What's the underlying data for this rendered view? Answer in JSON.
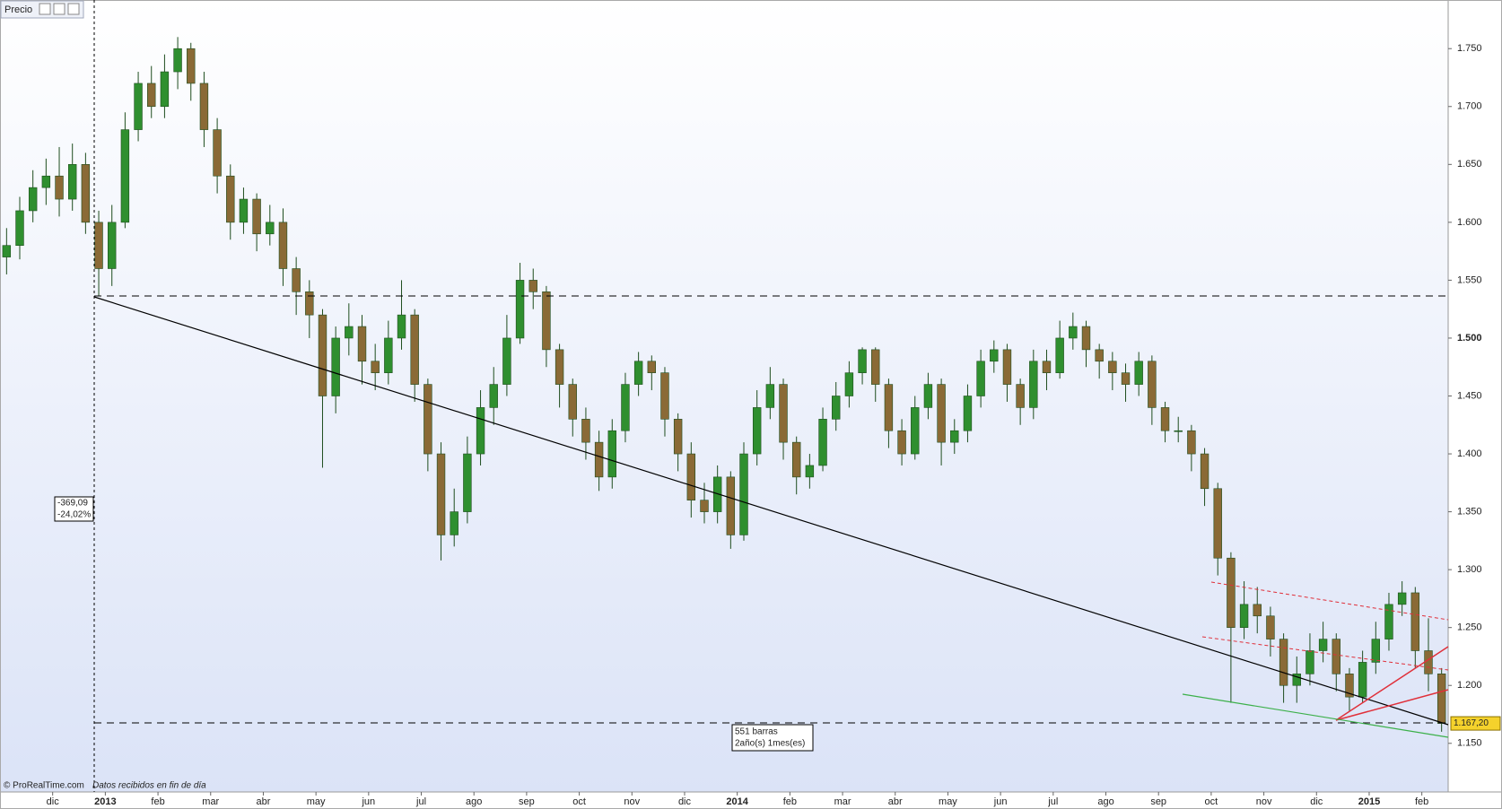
{
  "chart_data": {
    "type": "candlestick",
    "panel_label": "Precio",
    "footer_source": "© ProRealTime.com",
    "footer_note": "Datos recibidos en fin de día",
    "change_points": "-369,09",
    "change_percent": "-24,02%",
    "range_bars": "551 barras",
    "range_duration": "2año(s) 1mes(es)",
    "last_price_label": "1.167,20",
    "up_color": "#2f8f2f",
    "down_color": "#8a6a36",
    "ylim": [
      1108,
      1792
    ],
    "yticks": [
      {
        "value": 1150,
        "label": "1.150"
      },
      {
        "value": 1200,
        "label": "1.200"
      },
      {
        "value": 1250,
        "label": "1.250"
      },
      {
        "value": 1300,
        "label": "1.300"
      },
      {
        "value": 1350,
        "label": "1.350"
      },
      {
        "value": 1400,
        "label": "1.400"
      },
      {
        "value": 1450,
        "label": "1.450"
      },
      {
        "value": 1500,
        "label": "1.500"
      },
      {
        "value": 1550,
        "label": "1.550"
      },
      {
        "value": 1600,
        "label": "1.600"
      },
      {
        "value": 1650,
        "label": "1.650"
      },
      {
        "value": 1700,
        "label": "1.700"
      },
      {
        "value": 1750,
        "label": "1.750"
      }
    ],
    "categories": [
      null,
      null,
      null,
      null,
      "dic",
      null,
      null,
      null,
      "2013",
      null,
      null,
      null,
      "feb",
      null,
      null,
      null,
      "mar",
      null,
      null,
      null,
      "abr",
      null,
      null,
      null,
      "may",
      null,
      null,
      null,
      "jun",
      null,
      null,
      null,
      "jul",
      null,
      null,
      null,
      "ago",
      null,
      null,
      null,
      "sep",
      null,
      null,
      null,
      "oct",
      null,
      null,
      null,
      "nov",
      null,
      null,
      null,
      "dic",
      null,
      null,
      null,
      "2014",
      null,
      null,
      null,
      "feb",
      null,
      null,
      null,
      "mar",
      null,
      null,
      null,
      "abr",
      null,
      null,
      null,
      "may",
      null,
      null,
      null,
      "jun",
      null,
      null,
      null,
      "jul",
      null,
      null,
      null,
      "ago",
      null,
      null,
      null,
      "sep",
      null,
      null,
      null,
      "oct",
      null,
      null,
      null,
      "nov",
      null,
      null,
      null,
      "dic",
      null,
      null,
      null,
      "2015",
      null,
      null,
      null,
      "feb",
      null
    ],
    "ohlc": [
      [
        1570,
        1595,
        1555,
        1580
      ],
      [
        1580,
        1622,
        1568,
        1610
      ],
      [
        1610,
        1645,
        1600,
        1630
      ],
      [
        1630,
        1655,
        1615,
        1640
      ],
      [
        1640,
        1665,
        1605,
        1620
      ],
      [
        1620,
        1668,
        1610,
        1650
      ],
      [
        1650,
        1660,
        1590,
        1600
      ],
      [
        1600,
        1610,
        1536,
        1560
      ],
      [
        1560,
        1615,
        1545,
        1600
      ],
      [
        1600,
        1695,
        1595,
        1680
      ],
      [
        1680,
        1730,
        1670,
        1720
      ],
      [
        1720,
        1735,
        1690,
        1700
      ],
      [
        1700,
        1745,
        1690,
        1730
      ],
      [
        1730,
        1760,
        1715,
        1750
      ],
      [
        1750,
        1755,
        1705,
        1720
      ],
      [
        1720,
        1730,
        1665,
        1680
      ],
      [
        1680,
        1690,
        1625,
        1640
      ],
      [
        1640,
        1650,
        1585,
        1600
      ],
      [
        1600,
        1630,
        1590,
        1620
      ],
      [
        1620,
        1625,
        1575,
        1590
      ],
      [
        1590,
        1615,
        1580,
        1600
      ],
      [
        1600,
        1612,
        1545,
        1560
      ],
      [
        1560,
        1570,
        1520,
        1540
      ],
      [
        1540,
        1550,
        1500,
        1520
      ],
      [
        1520,
        1525,
        1388,
        1450
      ],
      [
        1450,
        1510,
        1435,
        1500
      ],
      [
        1500,
        1530,
        1485,
        1510
      ],
      [
        1510,
        1520,
        1460,
        1480
      ],
      [
        1480,
        1495,
        1455,
        1470
      ],
      [
        1470,
        1515,
        1460,
        1500
      ],
      [
        1500,
        1550,
        1490,
        1520
      ],
      [
        1520,
        1525,
        1445,
        1460
      ],
      [
        1460,
        1465,
        1385,
        1400
      ],
      [
        1400,
        1410,
        1308,
        1330
      ],
      [
        1330,
        1370,
        1320,
        1350
      ],
      [
        1350,
        1415,
        1340,
        1400
      ],
      [
        1400,
        1455,
        1390,
        1440
      ],
      [
        1440,
        1475,
        1425,
        1460
      ],
      [
        1460,
        1520,
        1450,
        1500
      ],
      [
        1500,
        1565,
        1495,
        1550
      ],
      [
        1550,
        1560,
        1525,
        1540
      ],
      [
        1540,
        1545,
        1475,
        1490
      ],
      [
        1490,
        1495,
        1440,
        1460
      ],
      [
        1460,
        1465,
        1415,
        1430
      ],
      [
        1430,
        1440,
        1395,
        1410
      ],
      [
        1410,
        1420,
        1368,
        1380
      ],
      [
        1380,
        1430,
        1370,
        1420
      ],
      [
        1420,
        1470,
        1410,
        1460
      ],
      [
        1460,
        1488,
        1450,
        1480
      ],
      [
        1480,
        1485,
        1455,
        1470
      ],
      [
        1470,
        1475,
        1415,
        1430
      ],
      [
        1430,
        1435,
        1385,
        1400
      ],
      [
        1400,
        1410,
        1345,
        1360
      ],
      [
        1360,
        1375,
        1340,
        1350
      ],
      [
        1350,
        1390,
        1340,
        1380
      ],
      [
        1380,
        1385,
        1318,
        1330
      ],
      [
        1330,
        1410,
        1325,
        1400
      ],
      [
        1400,
        1455,
        1390,
        1440
      ],
      [
        1440,
        1475,
        1430,
        1460
      ],
      [
        1460,
        1465,
        1395,
        1410
      ],
      [
        1410,
        1415,
        1365,
        1380
      ],
      [
        1380,
        1400,
        1370,
        1390
      ],
      [
        1390,
        1440,
        1385,
        1430
      ],
      [
        1430,
        1462,
        1420,
        1450
      ],
      [
        1450,
        1480,
        1440,
        1470
      ],
      [
        1470,
        1492,
        1460,
        1490
      ],
      [
        1490,
        1492,
        1445,
        1460
      ],
      [
        1460,
        1465,
        1405,
        1420
      ],
      [
        1420,
        1430,
        1390,
        1400
      ],
      [
        1400,
        1450,
        1395,
        1440
      ],
      [
        1440,
        1470,
        1430,
        1460
      ],
      [
        1460,
        1465,
        1390,
        1410
      ],
      [
        1410,
        1430,
        1400,
        1420
      ],
      [
        1420,
        1460,
        1410,
        1450
      ],
      [
        1450,
        1490,
        1440,
        1480
      ],
      [
        1480,
        1498,
        1470,
        1490
      ],
      [
        1490,
        1495,
        1445,
        1460
      ],
      [
        1460,
        1465,
        1425,
        1440
      ],
      [
        1440,
        1490,
        1430,
        1480
      ],
      [
        1480,
        1490,
        1455,
        1470
      ],
      [
        1470,
        1515,
        1465,
        1500
      ],
      [
        1500,
        1522,
        1490,
        1510
      ],
      [
        1510,
        1515,
        1475,
        1490
      ],
      [
        1490,
        1495,
        1465,
        1480
      ],
      [
        1480,
        1488,
        1455,
        1470
      ],
      [
        1470,
        1478,
        1445,
        1460
      ],
      [
        1460,
        1488,
        1450,
        1480
      ],
      [
        1480,
        1485,
        1425,
        1440
      ],
      [
        1440,
        1445,
        1410,
        1420
      ],
      [
        1420,
        1432,
        1410,
        1420
      ],
      [
        1420,
        1425,
        1385,
        1400
      ],
      [
        1400,
        1405,
        1355,
        1370
      ],
      [
        1370,
        1375,
        1295,
        1310
      ],
      [
        1310,
        1315,
        1185,
        1250
      ],
      [
        1250,
        1290,
        1240,
        1270
      ],
      [
        1270,
        1285,
        1245,
        1260
      ],
      [
        1260,
        1268,
        1225,
        1240
      ],
      [
        1240,
        1245,
        1185,
        1200
      ],
      [
        1200,
        1225,
        1185,
        1210
      ],
      [
        1210,
        1245,
        1200,
        1230
      ],
      [
        1230,
        1255,
        1220,
        1240
      ],
      [
        1240,
        1245,
        1195,
        1210
      ],
      [
        1210,
        1215,
        1178,
        1190
      ],
      [
        1190,
        1230,
        1185,
        1220
      ],
      [
        1220,
        1255,
        1210,
        1240
      ],
      [
        1240,
        1280,
        1230,
        1270
      ],
      [
        1270,
        1290,
        1260,
        1280
      ],
      [
        1280,
        1285,
        1215,
        1230
      ],
      [
        1230,
        1258,
        1195,
        1210
      ],
      [
        1210,
        1215,
        1160,
        1167.2
      ]
    ]
  }
}
